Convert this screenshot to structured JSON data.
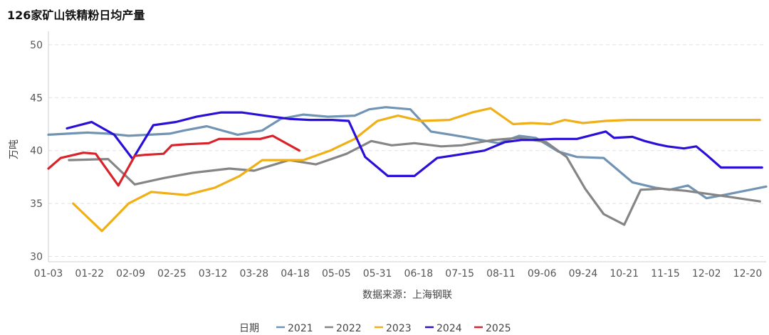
{
  "chart_data": {
    "type": "line",
    "title": "126家矿山铁精粉日均产量",
    "ylabel": "万吨",
    "xlabel": "数据来源：上海钢联",
    "legend_title": "日期",
    "legend_position": "bottom",
    "ylim": [
      29.5,
      51
    ],
    "yticks": [
      30,
      35,
      40,
      45,
      50
    ],
    "x_ticks": [
      "01-03",
      "01-22",
      "02-09",
      "02-25",
      "03-12",
      "03-28",
      "04-18",
      "05-05",
      "05-31",
      "06-18",
      "07-15",
      "08-11",
      "09-06",
      "09-24",
      "10-21",
      "11-15",
      "12-02",
      "12-20"
    ],
    "x_range": [
      0,
      17.45
    ],
    "grid": "horizontal dashed",
    "series": [
      {
        "name": "2021",
        "color": "#7193B4",
        "x": [
          0,
          0.95,
          1.45,
          1.95,
          2.95,
          3.3,
          3.85,
          4.6,
          5.2,
          5.65,
          6.2,
          6.8,
          7.45,
          7.8,
          8.2,
          8.8,
          9.3,
          10.1,
          10.95,
          11.45,
          11.85,
          12.4,
          12.85,
          13.5,
          14.2,
          14.75,
          15.1,
          15.55,
          16.0,
          16.55,
          17.45
        ],
        "y": [
          41.5,
          41.7,
          41.6,
          41.4,
          41.6,
          41.9,
          42.3,
          41.5,
          41.9,
          43.0,
          43.4,
          43.2,
          43.3,
          43.9,
          44.1,
          43.9,
          41.8,
          41.3,
          40.7,
          41.4,
          41.2,
          39.9,
          39.4,
          39.3,
          37.0,
          36.5,
          36.3,
          36.7,
          35.5,
          35.9,
          36.6
        ]
      },
      {
        "name": "2022",
        "color": "#858585",
        "x": [
          0.5,
          1.45,
          2.1,
          2.8,
          3.5,
          4.4,
          5.0,
          5.85,
          6.5,
          7.25,
          7.85,
          8.35,
          8.9,
          9.55,
          10.05,
          10.8,
          11.45,
          12.1,
          12.6,
          13.05,
          13.5,
          14.0,
          14.4,
          14.9,
          15.5,
          16.05,
          16.6,
          17.3
        ],
        "y": [
          39.1,
          39.2,
          36.8,
          37.4,
          37.9,
          38.3,
          38.1,
          39.1,
          38.7,
          39.7,
          40.9,
          40.5,
          40.7,
          40.4,
          40.5,
          41.0,
          41.2,
          40.8,
          39.4,
          36.4,
          34.0,
          33.0,
          36.3,
          36.4,
          36.2,
          35.9,
          35.6,
          35.2
        ]
      },
      {
        "name": "2023",
        "color": "#F0AF15",
        "x": [
          0.6,
          1.3,
          1.95,
          2.5,
          3.35,
          4.05,
          4.65,
          5.2,
          5.65,
          6.2,
          6.85,
          7.45,
          8.0,
          8.5,
          9.05,
          9.75,
          10.3,
          10.75,
          11.3,
          11.75,
          12.2,
          12.55,
          13.0,
          13.55,
          14.1,
          14.6,
          15.05,
          15.55,
          16.05,
          16.55,
          17.3
        ],
        "y": [
          35.0,
          32.4,
          35.0,
          36.1,
          35.8,
          36.5,
          37.6,
          39.1,
          39.1,
          39.1,
          40.0,
          41.1,
          42.8,
          43.3,
          42.8,
          42.9,
          43.6,
          44.0,
          42.5,
          42.6,
          42.5,
          42.9,
          42.6,
          42.8,
          42.9,
          42.9,
          42.9,
          42.9,
          42.9,
          42.9,
          42.9
        ]
      },
      {
        "name": "2024",
        "color": "#2A0FD7",
        "x": [
          0.45,
          1.05,
          1.6,
          2.05,
          2.55,
          3.1,
          3.6,
          4.2,
          4.7,
          5.25,
          5.85,
          6.35,
          6.9,
          7.3,
          7.7,
          8.25,
          8.9,
          9.45,
          9.95,
          10.6,
          11.1,
          11.5,
          11.75,
          12.3,
          12.85,
          13.55,
          13.75,
          14.2,
          14.5,
          14.8,
          15.05,
          15.45,
          15.75,
          16.0,
          16.35,
          16.95,
          17.2,
          17.35
        ],
        "y": [
          42.1,
          42.7,
          41.5,
          39.2,
          42.4,
          42.7,
          43.2,
          43.6,
          43.6,
          43.3,
          43.0,
          42.9,
          42.9,
          42.8,
          39.4,
          37.6,
          37.6,
          39.3,
          39.6,
          40.0,
          40.8,
          41.0,
          41.0,
          41.1,
          41.1,
          41.8,
          41.2,
          41.3,
          40.9,
          40.6,
          40.4,
          40.2,
          40.4,
          39.6,
          38.4,
          38.4,
          38.4,
          38.4
        ]
      },
      {
        "name": "2025",
        "color": "#D8232A",
        "x": [
          0,
          0.3,
          0.85,
          1.15,
          1.7,
          2.1,
          2.35,
          2.8,
          3.0,
          3.35,
          3.9,
          4.15,
          4.55,
          5.15,
          5.45,
          6.1
        ],
        "y": [
          38.3,
          39.3,
          39.8,
          39.7,
          36.7,
          39.5,
          39.6,
          39.7,
          40.5,
          40.6,
          40.7,
          41.1,
          41.1,
          41.1,
          41.4,
          40.0
        ]
      }
    ]
  }
}
